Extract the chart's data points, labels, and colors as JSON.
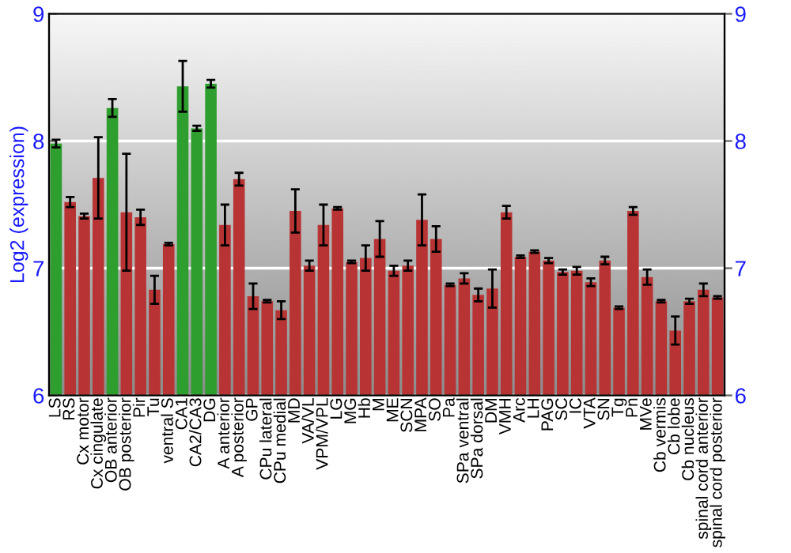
{
  "chart_data": {
    "type": "bar",
    "ylabel": "Log2 (expression)",
    "categories": [
      "LS",
      "RS",
      "Cx motor",
      "Cx cingulate",
      "OB anterior",
      "OB posterior",
      "Pir",
      "Tu",
      "ventral S",
      "CA1",
      "CA2/CA3",
      "DG",
      "A anterior",
      "A posterior",
      "GP",
      "CPu lateral",
      "CPu medial",
      "MD",
      "VA/VL",
      "VPM/VPL",
      "LG",
      "MG",
      "Hb",
      "M",
      "ME",
      "SCN",
      "MPA",
      "SO",
      "Pa",
      "SPa ventral",
      "SPa dorsal",
      "DM",
      "VMH",
      "Arc",
      "LH",
      "PAG",
      "SC",
      "IC",
      "VTA",
      "SN",
      "Tg",
      "Pn",
      "MVe",
      "Cb vermis",
      "Cb lobe",
      "Cb nucleus",
      "spinal cord anterior",
      "spinal cord posterior"
    ],
    "values": [
      7.98,
      7.52,
      7.41,
      7.71,
      8.26,
      7.44,
      7.4,
      6.83,
      7.19,
      8.43,
      8.1,
      8.45,
      7.34,
      7.7,
      6.78,
      6.74,
      6.67,
      7.45,
      7.02,
      7.34,
      7.47,
      7.05,
      7.08,
      7.23,
      6.98,
      7.02,
      7.38,
      7.23,
      6.87,
      6.92,
      6.79,
      6.84,
      7.44,
      7.09,
      7.13,
      7.06,
      6.97,
      6.98,
      6.89,
      7.06,
      6.69,
      7.45,
      6.93,
      6.74,
      6.51,
      6.74,
      6.83,
      6.77
    ],
    "errors": [
      0.03,
      0.04,
      0.02,
      0.32,
      0.07,
      0.46,
      0.06,
      0.11,
      0.01,
      0.2,
      0.02,
      0.03,
      0.16,
      0.05,
      0.1,
      0.01,
      0.07,
      0.17,
      0.04,
      0.16,
      0.01,
      0.01,
      0.1,
      0.14,
      0.04,
      0.04,
      0.2,
      0.1,
      0.01,
      0.04,
      0.05,
      0.15,
      0.05,
      0.01,
      0.01,
      0.02,
      0.02,
      0.03,
      0.03,
      0.03,
      0.01,
      0.03,
      0.06,
      0.01,
      0.11,
      0.02,
      0.05,
      0.01
    ],
    "colors": [
      "#2e9e2e",
      "#b83434",
      "#b83434",
      "#b83434",
      "#2e9e2e",
      "#b83434",
      "#b83434",
      "#b83434",
      "#b83434",
      "#2e9e2e",
      "#2e9e2e",
      "#2e9e2e",
      "#b83434",
      "#b83434",
      "#b83434",
      "#b83434",
      "#b83434",
      "#b83434",
      "#b83434",
      "#b83434",
      "#b83434",
      "#b83434",
      "#b83434",
      "#b83434",
      "#b83434",
      "#b83434",
      "#b83434",
      "#b83434",
      "#b83434",
      "#b83434",
      "#b83434",
      "#b83434",
      "#b83434",
      "#b83434",
      "#b83434",
      "#b83434",
      "#b83434",
      "#b83434",
      "#b83434",
      "#b83434",
      "#b83434",
      "#b83434",
      "#b83434",
      "#b83434",
      "#b83434",
      "#b83434",
      "#b83434",
      "#b83434"
    ],
    "ylim": [
      6,
      9
    ],
    "yticks": [
      6,
      7,
      8,
      9
    ],
    "y2lim": [
      6,
      9
    ],
    "y2ticks": [
      6,
      7,
      8,
      9
    ],
    "grid": "y",
    "legend": false
  }
}
